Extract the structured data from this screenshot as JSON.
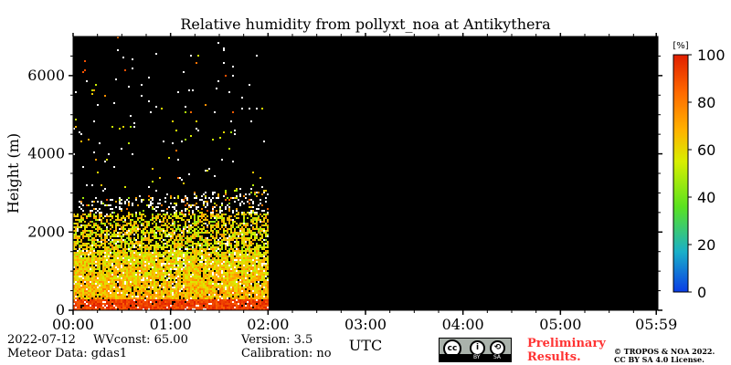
{
  "chart_data": {
    "type": "heatmap",
    "title": "Relative humidity from pollyxt_noa at Antikythera",
    "xlabel": "UTC",
    "ylabel": "Height (m)",
    "x_ticks": [
      "00:00",
      "01:00",
      "02:00",
      "03:00",
      "04:00",
      "05:00",
      "05:59"
    ],
    "y_ticks": [
      0,
      2000,
      4000,
      6000
    ],
    "ylim": [
      0,
      7000
    ],
    "x_range_hours": [
      0,
      6
    ],
    "data_end_hours": 2.0,
    "background_color": "#000000",
    "colorbar": {
      "unit_label": "[%]",
      "range": [
        0,
        100
      ],
      "ticks": [
        0,
        20,
        40,
        60,
        80,
        100
      ],
      "colors": [
        "#0a3ce6",
        "#1ab0c8",
        "#5ae21f",
        "#d8ef00",
        "#ffb300",
        "#ff6a00",
        "#e01e00"
      ]
    },
    "profile_description": [
      {
        "height_m": [
          0,
          300
        ],
        "rh_percent": [
          85,
          100
        ]
      },
      {
        "height_m": [
          300,
          1500
        ],
        "rh_percent": [
          55,
          80
        ]
      },
      {
        "height_m": [
          1500,
          2500
        ],
        "rh_percent": [
          40,
          70
        ]
      },
      {
        "height_m": [
          2500,
          7000
        ],
        "rh_percent": "sparse noise"
      }
    ]
  },
  "footer": {
    "date": "2022-07-12",
    "wvconst": "WVconst:  65.00",
    "meteor": "Meteor Data: gdas1",
    "version": "Version: 3.5",
    "calibration": "Calibration: no",
    "preliminary": "Preliminary\nResults.",
    "copyright_line1": "© TROPOS & NOA 2022.",
    "copyright_line2": "CC BY SA 4.0 License."
  },
  "badge": {
    "main": "cc",
    "by": "BY",
    "sa": "SA"
  }
}
